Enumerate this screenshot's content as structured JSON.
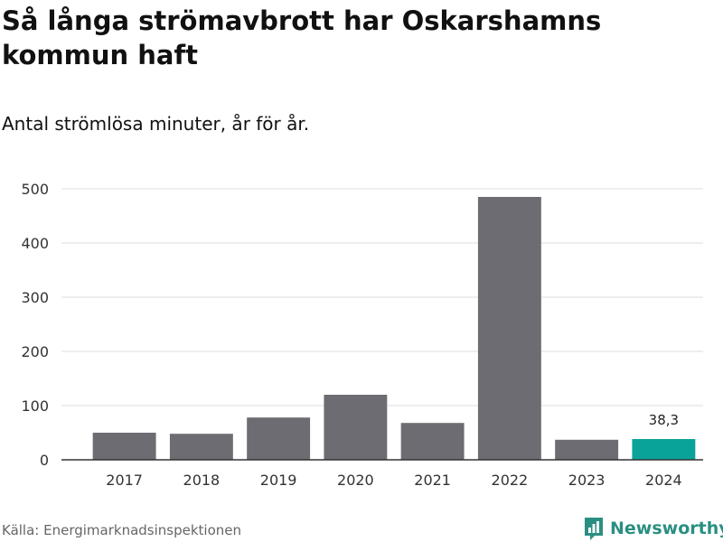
{
  "chart_data": {
    "type": "bar",
    "title": "Så långa strömavbrott har Oskarshamns kommun haft",
    "subtitle": "Antal strömlösa minuter, år för år.",
    "categories": [
      "2017",
      "2018",
      "2019",
      "2020",
      "2021",
      "2022",
      "2023",
      "2024"
    ],
    "values": [
      50,
      48,
      78,
      120,
      68,
      485,
      37,
      38.3
    ],
    "highlight_index": 7,
    "highlight_label": "38,3",
    "ylim": [
      0,
      500
    ],
    "yticks": [
      0,
      100,
      200,
      300,
      400,
      500
    ],
    "xlabel": "",
    "ylabel": "",
    "grid": true,
    "colors": {
      "bar": "#6d6c72",
      "highlight": "#0aa39a",
      "grid": "#dddddd",
      "axis": "#333333"
    }
  },
  "source": "Källa: Energimarknadsinspektionen",
  "logo": {
    "text": "Newsworthy",
    "icon": "chart-logo-icon",
    "color": "#2a8f82"
  }
}
